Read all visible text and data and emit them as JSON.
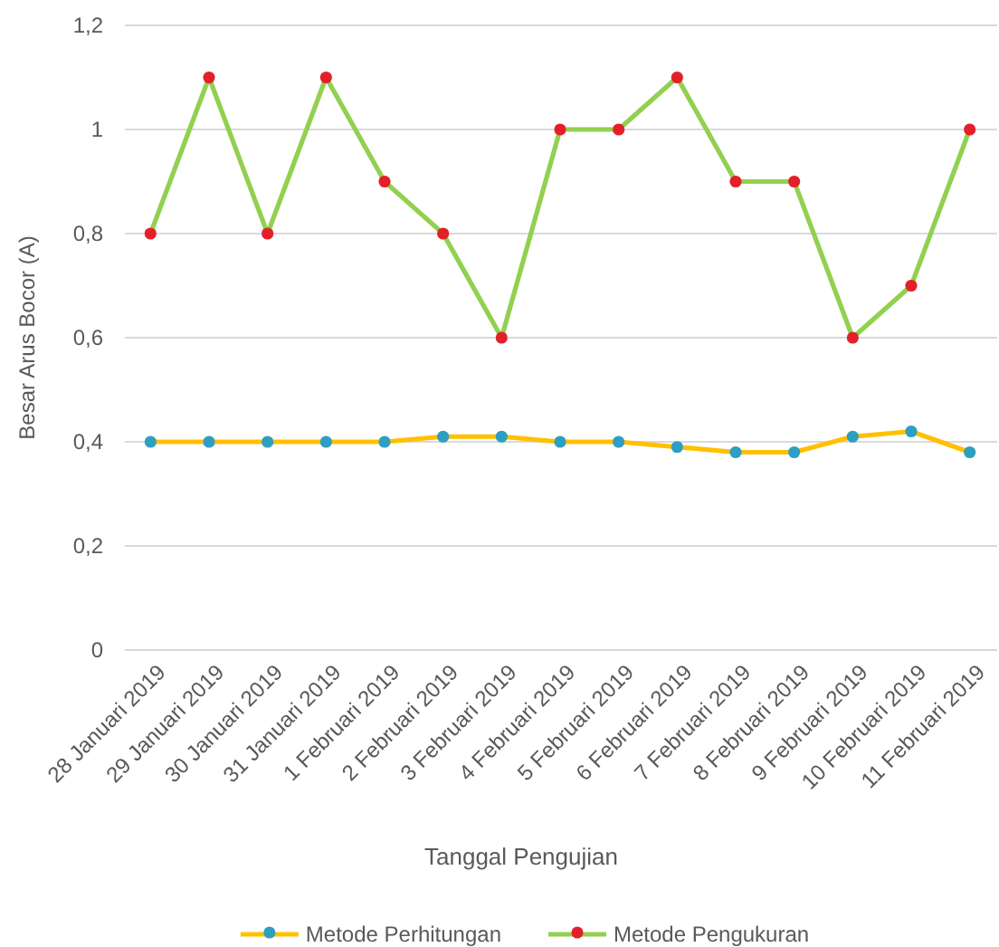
{
  "chart_data": {
    "type": "line",
    "xlabel": "Tanggal Pengujian",
    "ylabel": "Besar Arus Bocor (A)",
    "categories": [
      "28 Januari 2019",
      "29 Januari 2019",
      "30 Januari 2019",
      "31 Januari 2019",
      "1 Februari 2019",
      "2 Februari 2019",
      "3 Februari 2019",
      "4 Februari 2019",
      "5 Februari 2019",
      "6 Februari 2019",
      "7 Februari 2019",
      "8 Februari 2019",
      "9 Februari 2019",
      "10 Februari 2019",
      "11 Februari 2019"
    ],
    "series": [
      {
        "name": "Metode Perhitungan",
        "color": "#ffc000",
        "colors": [
          "#2e9fc0",
          "#2e9fc0",
          "#2e9fc0",
          "#2e9fc0",
          "#2e9fc0",
          "#2e9fc0",
          "#2e9fc0",
          "#2e9fc0",
          "#2e9fc0",
          "#2e9fc0",
          "#2e9fc0",
          "#2e9fc0",
          "#2e9fc0",
          "#2e9fc0",
          "#2e9fc0"
        ],
        "values": [
          0.4,
          0.4,
          0.4,
          0.4,
          0.4,
          0.41,
          0.41,
          0.4,
          0.4,
          0.39,
          0.38,
          0.38,
          0.41,
          0.42,
          0.38
        ]
      },
      {
        "name": "Metode Pengukuran",
        "color": "#92d050",
        "colors": [
          "#e3202a",
          "#e3202a",
          "#e3202a",
          "#e3202a",
          "#e3202a",
          "#e3202a",
          "#e3202a",
          "#e3202a",
          "#e3202a",
          "#e3202a",
          "#e3202a",
          "#e3202a",
          "#e3202a",
          "#e3202a",
          "#e3202a"
        ],
        "values": [
          0.8,
          1.1,
          0.8,
          1.1,
          0.9,
          0.8,
          0.6,
          1.0,
          1.0,
          1.1,
          0.9,
          0.9,
          0.6,
          0.7,
          1.0
        ]
      }
    ],
    "ylim": [
      0,
      1.2
    ],
    "yticks": [
      0,
      {
        "value": 0.2,
        "label": "0,2"
      },
      {
        "value": 0.4,
        "label": "0,4"
      },
      {
        "value": 0.6,
        "label": "0,6"
      },
      {
        "value": 0.8,
        "label": "0,8"
      },
      1,
      {
        "value": 1.2,
        "label": "1,2"
      }
    ],
    "grid": "y",
    "legend": "bottom",
    "marker": "circle",
    "line_style": "solid"
  }
}
